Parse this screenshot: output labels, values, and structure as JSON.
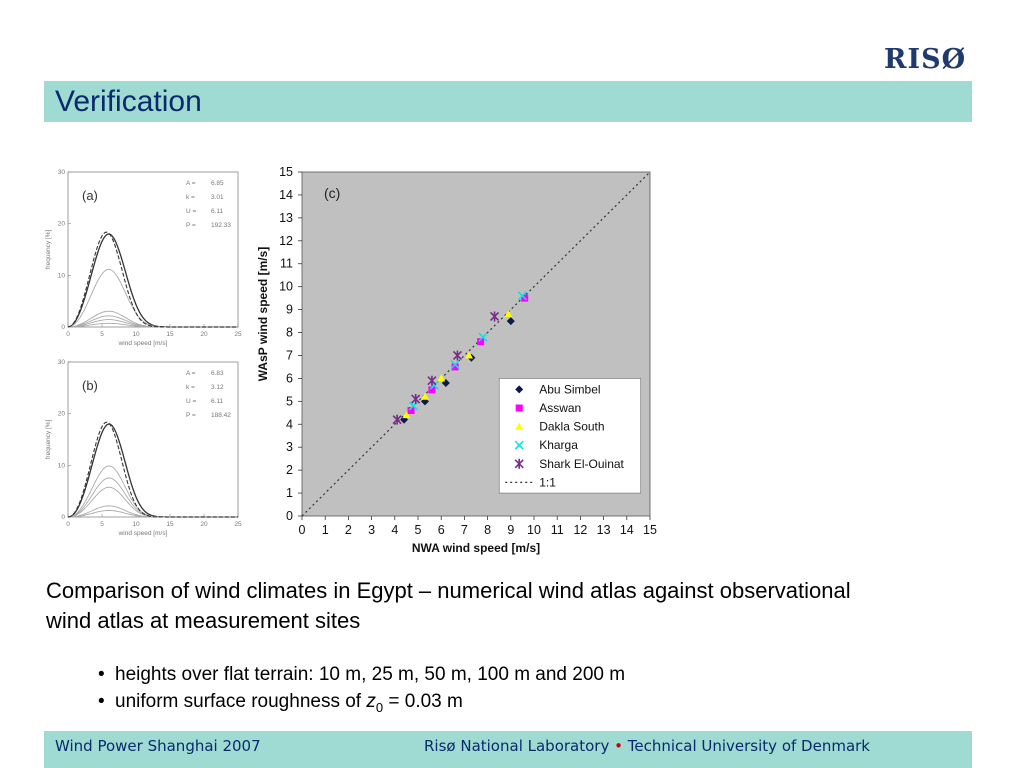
{
  "header": {
    "logo_text": "RISØ",
    "title": "Verification"
  },
  "chart_data": [
    {
      "type": "line",
      "panel_label": "(a)",
      "xlabel": "wind speed [m/s]",
      "ylabel": "frequency [%]",
      "xlim": [
        0,
        25
      ],
      "ylim": [
        0,
        30
      ],
      "xticks": [
        0,
        5,
        10,
        15,
        20,
        25
      ],
      "yticks": [
        0,
        10,
        20,
        30
      ],
      "params": [
        {
          "name": "A",
          "value": "6.85"
        },
        {
          "name": "k",
          "value": "3.01"
        },
        {
          "name": "U",
          "value": "6.11"
        },
        {
          "name": "P",
          "value": "192.33"
        }
      ],
      "weibull": {
        "A": 6.85,
        "k": 3.01
      },
      "curve_scales": [
        1.0,
        0.62,
        0.17,
        0.12,
        0.08,
        0.04
      ],
      "peak_frequency": 18
    },
    {
      "type": "line",
      "panel_label": "(b)",
      "xlabel": "wind speed [m/s]",
      "ylabel": "frequency [%]",
      "xlim": [
        0,
        25
      ],
      "ylim": [
        0,
        30
      ],
      "xticks": [
        0,
        5,
        10,
        15,
        20,
        25
      ],
      "yticks": [
        0,
        10,
        20,
        30
      ],
      "params": [
        {
          "name": "A",
          "value": "6.83"
        },
        {
          "name": "k",
          "value": "3.12"
        },
        {
          "name": "U",
          "value": "6.11"
        },
        {
          "name": "P",
          "value": "188.42"
        }
      ],
      "weibull": {
        "A": 6.83,
        "k": 3.12
      },
      "curve_scales": [
        1.0,
        0.55,
        0.42,
        0.32,
        0.12,
        0.07
      ],
      "peak_frequency": 18
    },
    {
      "type": "scatter",
      "panel_label": "(c)",
      "xlabel": "NWA wind speed [m/s]",
      "ylabel": "WAsP wind speed [m/s]",
      "xlim": [
        0,
        15
      ],
      "ylim": [
        0,
        15
      ],
      "xticks": [
        0,
        1,
        2,
        3,
        4,
        5,
        6,
        7,
        8,
        9,
        10,
        11,
        12,
        13,
        14,
        15
      ],
      "yticks": [
        0,
        1,
        2,
        3,
        4,
        5,
        6,
        7,
        8,
        9,
        10,
        11,
        12,
        13,
        14,
        15
      ],
      "background": "#c0c0c0",
      "reference_line": {
        "name": "1:1",
        "slope": 1
      },
      "series": [
        {
          "name": "Abu Simbel",
          "marker": "diamond",
          "color": "#0a1a4a",
          "x": [
            4.4,
            5.3,
            6.2,
            7.3,
            9.0
          ],
          "y": [
            4.2,
            5.0,
            5.8,
            6.9,
            8.5
          ]
        },
        {
          "name": "Asswan",
          "marker": "square",
          "color": "#ff00ff",
          "x": [
            4.7,
            5.6,
            6.6,
            7.7,
            9.6
          ],
          "y": [
            4.6,
            5.5,
            6.5,
            7.6,
            9.5
          ]
        },
        {
          "name": "Dakla South",
          "marker": "triangle",
          "color": "#ffff00",
          "x": [
            4.5,
            5.3,
            6.0,
            7.2,
            8.9
          ],
          "y": [
            4.4,
            5.2,
            6.0,
            7.0,
            8.8
          ]
        },
        {
          "name": "Kharga",
          "marker": "x",
          "color": "#00e5e5",
          "x": [
            4.8,
            5.7,
            6.6,
            7.8,
            9.5
          ],
          "y": [
            4.8,
            5.7,
            6.6,
            7.8,
            9.6
          ]
        },
        {
          "name": "Shark El-Ouinat",
          "marker": "star",
          "color": "#7a2a8a",
          "x": [
            4.1,
            4.9,
            5.6,
            6.7,
            8.3
          ],
          "y": [
            4.2,
            5.1,
            5.9,
            7.0,
            8.7
          ]
        }
      ]
    }
  ],
  "caption": "Comparison of wind climates in Egypt – numerical wind atlas against observational wind atlas at measurement sites",
  "bullets": {
    "b1": "heights over flat terrain: 10 m, 25 m, 50 m, 100 m and 200 m",
    "b2_prefix": "uniform surface roughness of ",
    "b2_var": "z",
    "b2_sub": "0",
    "b2_suffix": " = 0.03 m",
    "bullet_char": "•"
  },
  "footer": {
    "left": "Wind Power Shanghai 2007",
    "right_a": "Risø National Laboratory ",
    "right_bullet": "•",
    "right_b": " Technical University of Denmark"
  },
  "colors": {
    "band": "#9fdad3",
    "title_text": "#0a2a6b",
    "logo": "#1f3a6e"
  }
}
